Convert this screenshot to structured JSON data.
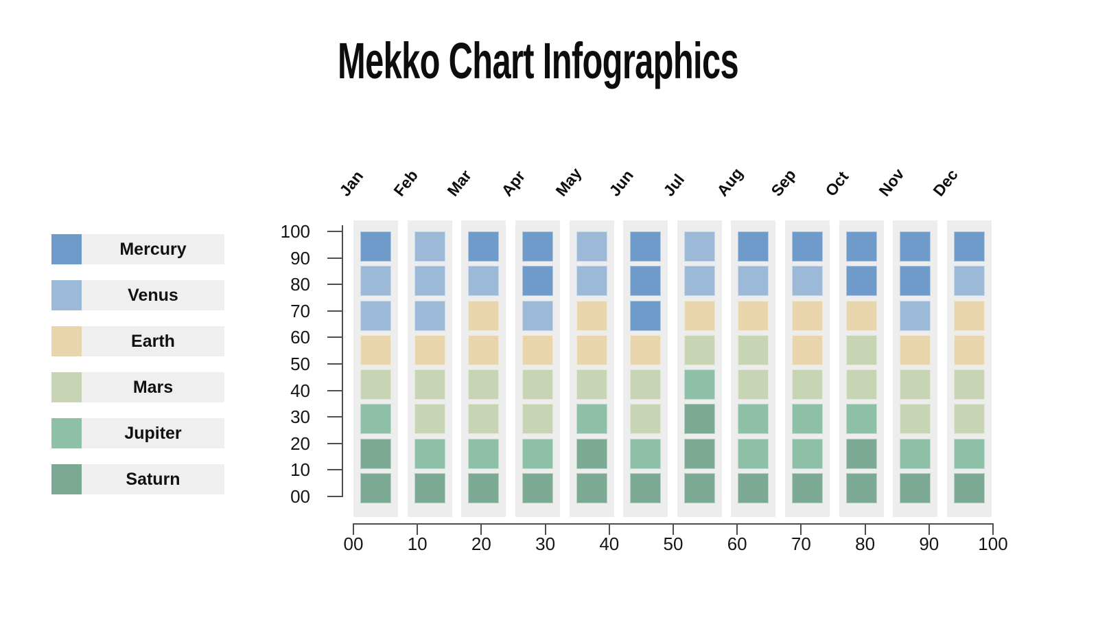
{
  "title": "Mekko Chart Infographics",
  "legend": {
    "bar_color": "#efefef",
    "items": [
      {
        "label": "Mercury",
        "color": "#6f9bcb"
      },
      {
        "label": "Venus",
        "color": "#9cbad8"
      },
      {
        "label": "Earth",
        "color": "#e9d5ab"
      },
      {
        "label": "Mars",
        "color": "#c8d5b4"
      },
      {
        "label": "Jupiter",
        "color": "#8dc0a7"
      },
      {
        "label": "Saturn",
        "color": "#7ba993"
      }
    ]
  },
  "chart_data": {
    "type": "heatmap",
    "title": "Mekko Chart Infographics",
    "categories": [
      "Jan",
      "Feb",
      "Mar",
      "Apr",
      "May",
      "Jun",
      "Jul",
      "Aug",
      "Sep",
      "Oct",
      "Nov",
      "Dec"
    ],
    "cells_per_column": 8,
    "cell_value_units": 12.5,
    "y_axis_ticks": [
      "100",
      "90",
      "80",
      "70",
      "60",
      "50",
      "40",
      "30",
      "20",
      "10",
      "00"
    ],
    "x_axis_ticks": [
      "00",
      "10",
      "20",
      "30",
      "40",
      "50",
      "60",
      "70",
      "80",
      "90",
      "100"
    ],
    "y_axis_range": [
      0,
      100
    ],
    "x_axis_range": [
      0,
      100
    ],
    "grid": false,
    "legend_position": "left",
    "column_bg": "#ededed",
    "axis_color": "#4d4d4d",
    "series_colors": {
      "Mercury": "#6f9bcb",
      "Venus": "#9cbad8",
      "Earth": "#e9d5ab",
      "Mars": "#c8d5b4",
      "Jupiter": "#8dc0a7",
      "Saturn": "#7ba993"
    },
    "columns": [
      {
        "month": "Jan",
        "cells_top_to_bottom": [
          "Mercury",
          "Venus",
          "Venus",
          "Earth",
          "Mars",
          "Jupiter",
          "Saturn",
          "Saturn"
        ]
      },
      {
        "month": "Feb",
        "cells_top_to_bottom": [
          "Venus",
          "Venus",
          "Venus",
          "Earth",
          "Mars",
          "Mars",
          "Jupiter",
          "Saturn"
        ]
      },
      {
        "month": "Mar",
        "cells_top_to_bottom": [
          "Mercury",
          "Venus",
          "Earth",
          "Earth",
          "Mars",
          "Mars",
          "Jupiter",
          "Saturn"
        ]
      },
      {
        "month": "Apr",
        "cells_top_to_bottom": [
          "Mercury",
          "Mercury",
          "Venus",
          "Earth",
          "Mars",
          "Mars",
          "Jupiter",
          "Saturn"
        ]
      },
      {
        "month": "May",
        "cells_top_to_bottom": [
          "Venus",
          "Venus",
          "Earth",
          "Earth",
          "Mars",
          "Jupiter",
          "Saturn",
          "Saturn"
        ]
      },
      {
        "month": "Jun",
        "cells_top_to_bottom": [
          "Mercury",
          "Mercury",
          "Mercury",
          "Earth",
          "Mars",
          "Mars",
          "Jupiter",
          "Saturn"
        ]
      },
      {
        "month": "Jul",
        "cells_top_to_bottom": [
          "Venus",
          "Venus",
          "Earth",
          "Mars",
          "Jupiter",
          "Saturn",
          "Saturn",
          "Saturn"
        ]
      },
      {
        "month": "Aug",
        "cells_top_to_bottom": [
          "Mercury",
          "Venus",
          "Earth",
          "Mars",
          "Mars",
          "Jupiter",
          "Jupiter",
          "Saturn"
        ]
      },
      {
        "month": "Sep",
        "cells_top_to_bottom": [
          "Mercury",
          "Venus",
          "Earth",
          "Earth",
          "Mars",
          "Jupiter",
          "Jupiter",
          "Saturn"
        ]
      },
      {
        "month": "Oct",
        "cells_top_to_bottom": [
          "Mercury",
          "Mercury",
          "Earth",
          "Mars",
          "Mars",
          "Jupiter",
          "Saturn",
          "Saturn"
        ]
      },
      {
        "month": "Nov",
        "cells_top_to_bottom": [
          "Mercury",
          "Mercury",
          "Venus",
          "Earth",
          "Mars",
          "Mars",
          "Jupiter",
          "Saturn"
        ]
      },
      {
        "month": "Dec",
        "cells_top_to_bottom": [
          "Mercury",
          "Venus",
          "Earth",
          "Earth",
          "Mars",
          "Mars",
          "Jupiter",
          "Saturn"
        ]
      }
    ]
  }
}
